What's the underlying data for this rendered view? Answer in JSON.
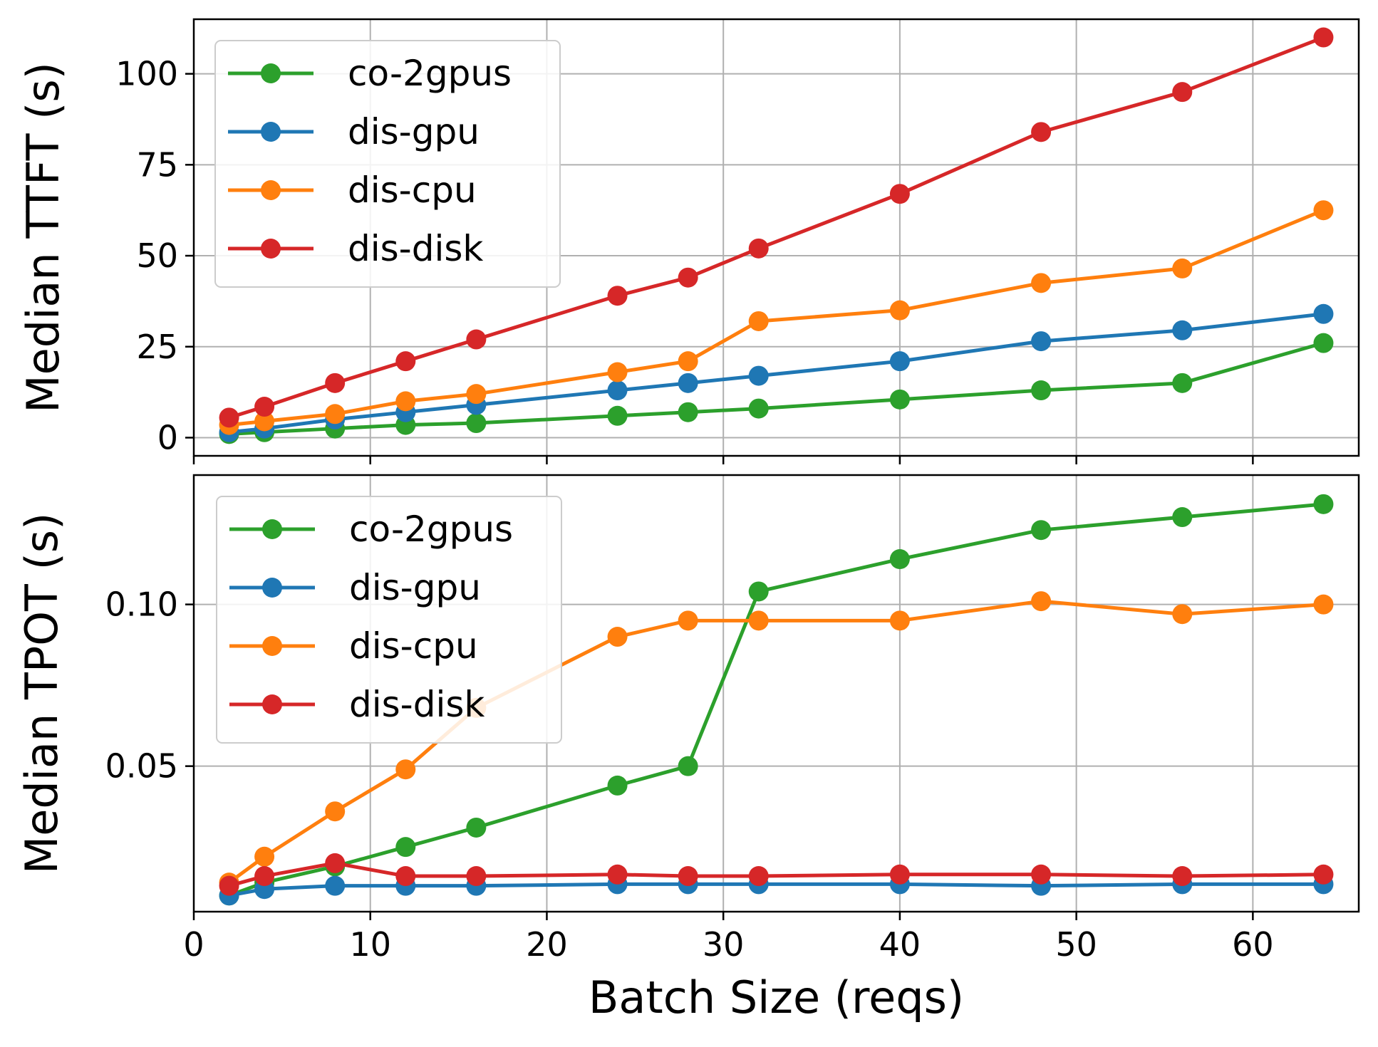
{
  "chart_data": [
    {
      "type": "line",
      "title": "",
      "xlabel": "",
      "ylabel": "Median TTFT (s)",
      "xlim": [
        0,
        66
      ],
      "ylim": [
        -5,
        115
      ],
      "xticks": [
        0,
        10,
        20,
        30,
        40,
        50,
        60
      ],
      "yticks": [
        0,
        25,
        50,
        75,
        100
      ],
      "ytick_labels": [
        "0",
        "25",
        "50",
        "75",
        "100"
      ],
      "grid": true,
      "legend_location": "upper-left",
      "x": [
        2,
        4,
        8,
        12,
        16,
        24,
        28,
        32,
        40,
        48,
        56,
        64
      ],
      "series": [
        {
          "name": "co-2gpus",
          "color": "#2ca02c",
          "values": [
            1,
            1.5,
            2.5,
            3.5,
            4,
            6,
            7,
            8,
            10.5,
            13,
            15,
            26
          ]
        },
        {
          "name": "dis-gpu",
          "color": "#1f77b4",
          "values": [
            1.5,
            2.5,
            5,
            7,
            9,
            13,
            15,
            17,
            21,
            26.5,
            29.5,
            34
          ]
        },
        {
          "name": "dis-cpu",
          "color": "#ff7f0e",
          "values": [
            3.5,
            4.5,
            6.5,
            10,
            12,
            18,
            21,
            32,
            35,
            42.5,
            46.5,
            62.5
          ]
        },
        {
          "name": "dis-disk",
          "color": "#d62728",
          "values": [
            5.5,
            8.5,
            15,
            21,
            27,
            39,
            44,
            52,
            67,
            84,
            95,
            110
          ]
        }
      ]
    },
    {
      "type": "line",
      "title": "",
      "xlabel": "Batch Size (reqs)",
      "ylabel": "Median TPOT (s)",
      "xlim": [
        0,
        66
      ],
      "ylim": [
        0.005,
        0.14
      ],
      "xticks": [
        0,
        10,
        20,
        30,
        40,
        50,
        60
      ],
      "xtick_labels": [
        "0",
        "10",
        "20",
        "30",
        "40",
        "50",
        "60"
      ],
      "yticks": [
        0.05,
        0.1
      ],
      "ytick_labels": [
        "0.05",
        "0.10"
      ],
      "grid": true,
      "legend_location": "upper-left",
      "x": [
        2,
        4,
        8,
        12,
        16,
        24,
        28,
        32,
        40,
        48,
        56,
        64
      ],
      "series": [
        {
          "name": "co-2gpus",
          "color": "#2ca02c",
          "values": [
            0.01,
            0.014,
            0.019,
            0.025,
            0.031,
            0.044,
            0.05,
            0.104,
            0.114,
            0.123,
            0.127,
            0.131
          ]
        },
        {
          "name": "dis-gpu",
          "color": "#1f77b4",
          "values": [
            0.01,
            0.012,
            0.013,
            0.013,
            0.013,
            0.0135,
            0.0135,
            0.0135,
            0.0135,
            0.013,
            0.0135,
            0.0135
          ]
        },
        {
          "name": "dis-cpu",
          "color": "#ff7f0e",
          "values": [
            0.014,
            0.022,
            0.036,
            0.049,
            0.068,
            0.09,
            0.095,
            0.095,
            0.095,
            0.101,
            0.097,
            0.1
          ]
        },
        {
          "name": "dis-disk",
          "color": "#d62728",
          "values": [
            0.013,
            0.016,
            0.02,
            0.016,
            0.016,
            0.0165,
            0.016,
            0.016,
            0.0165,
            0.0165,
            0.016,
            0.0165
          ]
        }
      ]
    }
  ]
}
